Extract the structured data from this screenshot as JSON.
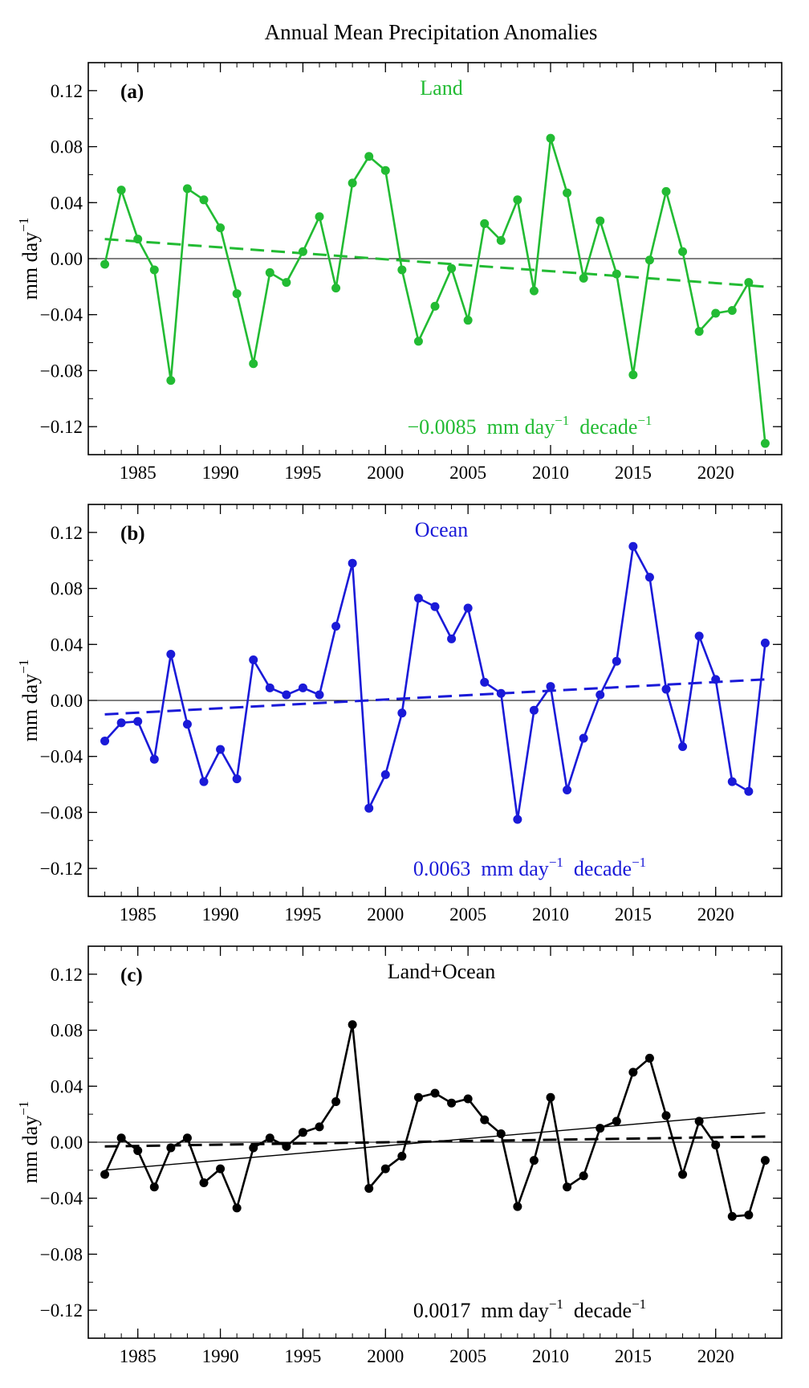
{
  "figure_title": "Annual Mean Precipitation Anomalies",
  "chart_data": [
    {
      "type": "line",
      "panel_label": "(a)",
      "title": "Land",
      "color": "#22bb33",
      "ylabel_base": "mm day",
      "ylabel_exp": "−1",
      "ylim": [
        -0.14,
        0.14
      ],
      "yticks": [
        -0.12,
        -0.08,
        -0.04,
        0.0,
        0.04,
        0.08,
        0.12
      ],
      "ytick_labels": [
        "−0.12",
        "−0.08",
        "−0.04",
        "0.00",
        "0.04",
        "0.08",
        "0.12"
      ],
      "xlim": [
        1982,
        2024
      ],
      "xticks": [
        1985,
        1990,
        1995,
        2000,
        2005,
        2010,
        2015,
        2020
      ],
      "xtick_labels": [
        "1985",
        "1990",
        "1995",
        "2000",
        "2005",
        "2010",
        "2015",
        "2020"
      ],
      "series": [
        {
          "name": "Land",
          "x": [
            1983,
            1984,
            1985,
            1986,
            1987,
            1988,
            1989,
            1990,
            1991,
            1992,
            1993,
            1994,
            1995,
            1996,
            1997,
            1998,
            1999,
            2000,
            2001,
            2002,
            2003,
            2004,
            2005,
            2006,
            2007,
            2008,
            2009,
            2010,
            2011,
            2012,
            2013,
            2014,
            2015,
            2016,
            2017,
            2018,
            2019,
            2020,
            2021,
            2022,
            2023
          ],
          "values": [
            -0.004,
            0.049,
            0.014,
            -0.008,
            -0.087,
            0.05,
            0.042,
            0.022,
            -0.025,
            -0.075,
            -0.01,
            -0.017,
            0.005,
            0.03,
            -0.021,
            0.054,
            0.073,
            0.063,
            -0.008,
            -0.059,
            -0.034,
            -0.007,
            -0.044,
            0.025,
            0.013,
            0.042,
            -0.023,
            0.086,
            0.047,
            -0.014,
            0.027,
            -0.011,
            -0.083,
            -0.001,
            0.048,
            0.005,
            -0.052,
            -0.039,
            -0.037,
            -0.017,
            -0.132
          ]
        }
      ],
      "trend_lines": [
        {
          "style": "dashed",
          "x": [
            1983,
            2023
          ],
          "y": [
            0.014,
            -0.02
          ]
        }
      ],
      "trend_text": {
        "value": "−0.0085",
        "unit_base": "mm day",
        "unit_exp": "−1",
        "per_base": "decade",
        "per_exp": "−1"
      }
    },
    {
      "type": "line",
      "panel_label": "(b)",
      "title": "Ocean",
      "color": "#1a1ad8",
      "ylabel_base": "mm day",
      "ylabel_exp": "−1",
      "ylim": [
        -0.14,
        0.14
      ],
      "yticks": [
        -0.12,
        -0.08,
        -0.04,
        0.0,
        0.04,
        0.08,
        0.12
      ],
      "ytick_labels": [
        "−0.12",
        "−0.08",
        "−0.04",
        "0.00",
        "0.04",
        "0.08",
        "0.12"
      ],
      "xlim": [
        1982,
        2024
      ],
      "xticks": [
        1985,
        1990,
        1995,
        2000,
        2005,
        2010,
        2015,
        2020
      ],
      "xtick_labels": [
        "1985",
        "1990",
        "1995",
        "2000",
        "2005",
        "2010",
        "2015",
        "2020"
      ],
      "series": [
        {
          "name": "Ocean",
          "x": [
            1983,
            1984,
            1985,
            1986,
            1987,
            1988,
            1989,
            1990,
            1991,
            1992,
            1993,
            1994,
            1995,
            1996,
            1997,
            1998,
            1999,
            2000,
            2001,
            2002,
            2003,
            2004,
            2005,
            2006,
            2007,
            2008,
            2009,
            2010,
            2011,
            2012,
            2013,
            2014,
            2015,
            2016,
            2017,
            2018,
            2019,
            2020,
            2021,
            2022,
            2023
          ],
          "values": [
            -0.029,
            -0.016,
            -0.015,
            -0.042,
            0.033,
            -0.017,
            -0.058,
            -0.035,
            -0.056,
            0.029,
            0.009,
            0.004,
            0.009,
            0.004,
            0.053,
            0.098,
            -0.077,
            -0.053,
            -0.009,
            0.073,
            0.067,
            0.044,
            0.066,
            0.013,
            0.005,
            -0.085,
            -0.007,
            0.01,
            -0.064,
            -0.027,
            0.004,
            0.028,
            0.11,
            0.088,
            0.008,
            -0.033,
            0.046,
            0.015,
            -0.058,
            -0.065,
            0.041
          ]
        }
      ],
      "trend_lines": [
        {
          "style": "dashed",
          "x": [
            1983,
            2023
          ],
          "y": [
            -0.01,
            0.015
          ]
        }
      ],
      "trend_text": {
        "value": "0.0063",
        "unit_base": "mm day",
        "unit_exp": "−1",
        "per_base": "decade",
        "per_exp": "−1"
      }
    },
    {
      "type": "line",
      "panel_label": "(c)",
      "title": "Land+Ocean",
      "color": "#000000",
      "ylabel_base": "mm day",
      "ylabel_exp": "−1",
      "ylim": [
        -0.14,
        0.14
      ],
      "yticks": [
        -0.12,
        -0.08,
        -0.04,
        0.0,
        0.04,
        0.08,
        0.12
      ],
      "ytick_labels": [
        "−0.12",
        "−0.08",
        "−0.04",
        "0.00",
        "0.04",
        "0.08",
        "0.12"
      ],
      "xlim": [
        1982,
        2024
      ],
      "xticks": [
        1985,
        1990,
        1995,
        2000,
        2005,
        2010,
        2015,
        2020
      ],
      "xtick_labels": [
        "1985",
        "1990",
        "1995",
        "2000",
        "2005",
        "2010",
        "2015",
        "2020"
      ],
      "series": [
        {
          "name": "Land+Ocean",
          "x": [
            1983,
            1984,
            1985,
            1986,
            1987,
            1988,
            1989,
            1990,
            1991,
            1992,
            1993,
            1994,
            1995,
            1996,
            1997,
            1998,
            1999,
            2000,
            2001,
            2002,
            2003,
            2004,
            2005,
            2006,
            2007,
            2008,
            2009,
            2010,
            2011,
            2012,
            2013,
            2014,
            2015,
            2016,
            2017,
            2018,
            2019,
            2020,
            2021,
            2022,
            2023
          ],
          "values": [
            -0.023,
            0.003,
            -0.006,
            -0.032,
            -0.004,
            0.003,
            -0.029,
            -0.019,
            -0.047,
            -0.004,
            0.003,
            -0.003,
            0.007,
            0.011,
            0.029,
            0.084,
            -0.033,
            -0.019,
            -0.01,
            0.032,
            0.035,
            0.028,
            0.031,
            0.016,
            0.006,
            -0.046,
            -0.013,
            0.032,
            -0.032,
            -0.024,
            0.01,
            0.015,
            0.05,
            0.06,
            0.019,
            -0.023,
            0.015,
            -0.002,
            -0.053,
            -0.052,
            -0.013
          ]
        }
      ],
      "trend_lines": [
        {
          "style": "dashed",
          "x": [
            1983,
            2023
          ],
          "y": [
            -0.003,
            0.004
          ]
        },
        {
          "style": "solid",
          "x": [
            1983,
            2023
          ],
          "y": [
            -0.02,
            0.021
          ]
        }
      ],
      "trend_text": {
        "value": "0.0017",
        "unit_base": "mm day",
        "unit_exp": "−1",
        "per_base": "decade",
        "per_exp": "−1"
      }
    }
  ]
}
